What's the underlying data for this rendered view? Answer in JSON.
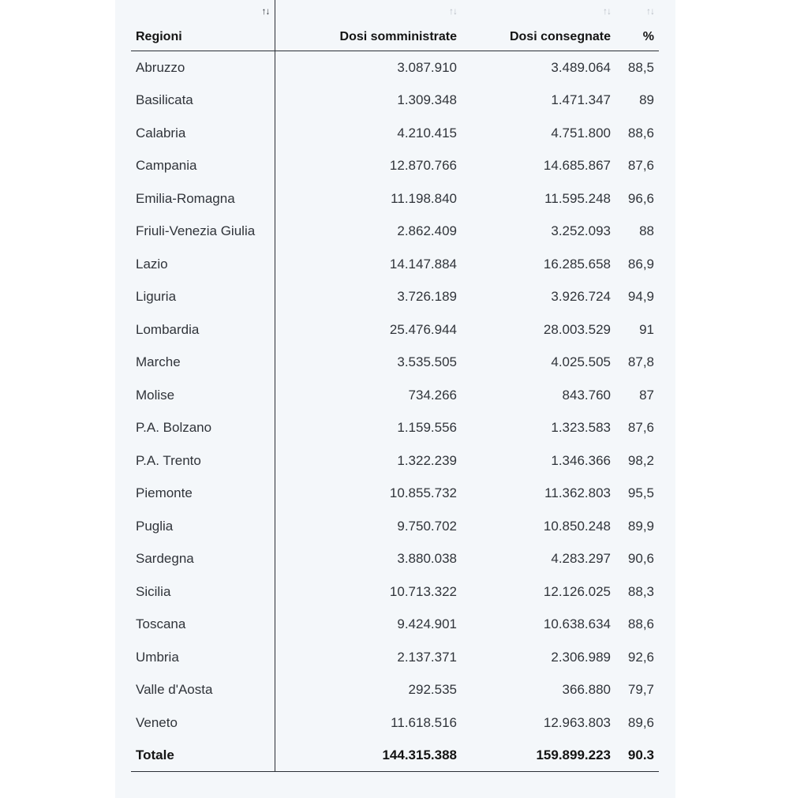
{
  "table": {
    "headers": {
      "region": "Regioni",
      "administered": "Dosi somministrate",
      "delivered": "Dosi consegnate",
      "percent": "%"
    },
    "sort_icon": "↑↓",
    "rows": [
      {
        "region": "Abruzzo",
        "administered": "3.087.910",
        "delivered": "3.489.064",
        "percent": "88,5"
      },
      {
        "region": "Basilicata",
        "administered": "1.309.348",
        "delivered": "1.471.347",
        "percent": "89"
      },
      {
        "region": "Calabria",
        "administered": "4.210.415",
        "delivered": "4.751.800",
        "percent": "88,6"
      },
      {
        "region": "Campania",
        "administered": "12.870.766",
        "delivered": "14.685.867",
        "percent": "87,6"
      },
      {
        "region": "Emilia-Romagna",
        "administered": "11.198.840",
        "delivered": "11.595.248",
        "percent": "96,6"
      },
      {
        "region": "Friuli-Venezia Giulia",
        "administered": "2.862.409",
        "delivered": "3.252.093",
        "percent": "88"
      },
      {
        "region": "Lazio",
        "administered": "14.147.884",
        "delivered": "16.285.658",
        "percent": "86,9"
      },
      {
        "region": "Liguria",
        "administered": "3.726.189",
        "delivered": "3.926.724",
        "percent": "94,9"
      },
      {
        "region": "Lombardia",
        "administered": "25.476.944",
        "delivered": "28.003.529",
        "percent": "91"
      },
      {
        "region": "Marche",
        "administered": "3.535.505",
        "delivered": "4.025.505",
        "percent": "87,8"
      },
      {
        "region": "Molise",
        "administered": "734.266",
        "delivered": "843.760",
        "percent": "87"
      },
      {
        "region": "P.A. Bolzano",
        "administered": "1.159.556",
        "delivered": "1.323.583",
        "percent": "87,6"
      },
      {
        "region": "P.A. Trento",
        "administered": "1.322.239",
        "delivered": "1.346.366",
        "percent": "98,2"
      },
      {
        "region": "Piemonte",
        "administered": "10.855.732",
        "delivered": "11.362.803",
        "percent": "95,5"
      },
      {
        "region": "Puglia",
        "administered": "9.750.702",
        "delivered": "10.850.248",
        "percent": "89,9"
      },
      {
        "region": "Sardegna",
        "administered": "3.880.038",
        "delivered": "4.283.297",
        "percent": "90,6"
      },
      {
        "region": "Sicilia",
        "administered": "10.713.322",
        "delivered": "12.126.025",
        "percent": "88,3"
      },
      {
        "region": "Toscana",
        "administered": "9.424.901",
        "delivered": "10.638.634",
        "percent": "88,6"
      },
      {
        "region": "Umbria",
        "administered": "2.137.371",
        "delivered": "2.306.989",
        "percent": "92,6"
      },
      {
        "region": "Valle d'Aosta",
        "administered": "292.535",
        "delivered": "366.880",
        "percent": "79,7"
      },
      {
        "region": "Veneto",
        "administered": "11.618.516",
        "delivered": "12.963.803",
        "percent": "89,6"
      }
    ],
    "total": {
      "region": "Totale",
      "administered": "144.315.388",
      "delivered": "159.899.223",
      "percent": "90.3"
    }
  }
}
